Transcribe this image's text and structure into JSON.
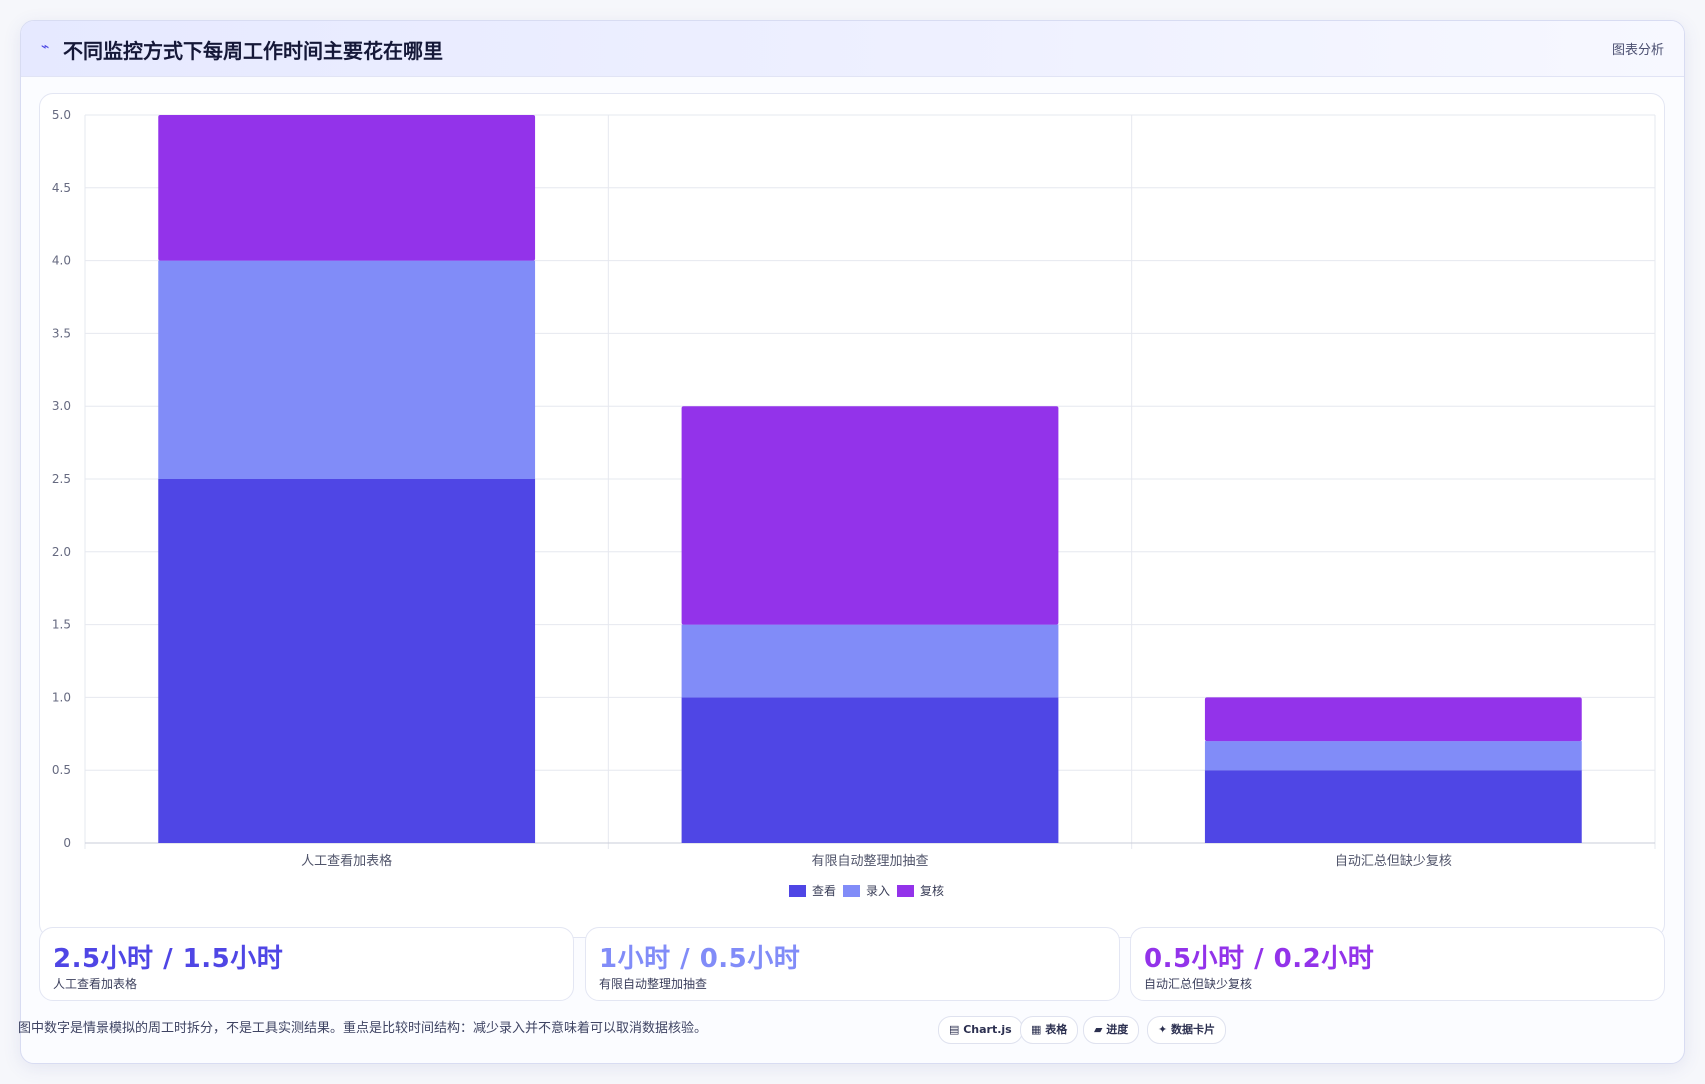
{
  "header": {
    "icon": "chart-line-icon",
    "title": "不同监控方式下每周工作时间主要花在哪里",
    "tag": "图表分析"
  },
  "chart_data": {
    "type": "bar",
    "stacked": true,
    "categories": [
      "人工查看加表格",
      "有限自动整理加抽查",
      "自动汇总但缺少复核"
    ],
    "series": [
      {
        "name": "查看",
        "values": [
          2.5,
          1.0,
          0.5
        ],
        "color": "#4f46e5"
      },
      {
        "name": "录入",
        "values": [
          1.5,
          0.5,
          0.2
        ],
        "color": "#818cf8"
      },
      {
        "name": "复核",
        "values": [
          1.0,
          1.5,
          0.3
        ],
        "color": "#9333ea"
      }
    ],
    "ylim": [
      0,
      5
    ],
    "yticks": [
      "0",
      "0.5",
      "1.0",
      "1.5",
      "2.0",
      "2.5",
      "3.0",
      "3.5",
      "4.0",
      "4.5",
      "5.0"
    ],
    "grid": true,
    "legend_position": "bottom"
  },
  "stats": [
    {
      "value": "2.5小时 / 1.5小时",
      "label": "人工查看加表格",
      "color": "#4f46e5"
    },
    {
      "value": "1小时 / 0.5小时",
      "label": "有限自动整理加抽查",
      "color": "#818cf8"
    },
    {
      "value": "0.5小时 / 0.2小时",
      "label": "自动汇总但缺少复核",
      "color": "#9333ea"
    }
  ],
  "footnote": "图中数字是情景模拟的周工时拆分，不是工具实测结果。重点是比较时间结构：减少录入并不意味着可以取消数据核验。",
  "chips": [
    "▤ Chart.js",
    "▦ 表格",
    "▰ 进度",
    "✦ 数据卡片"
  ]
}
